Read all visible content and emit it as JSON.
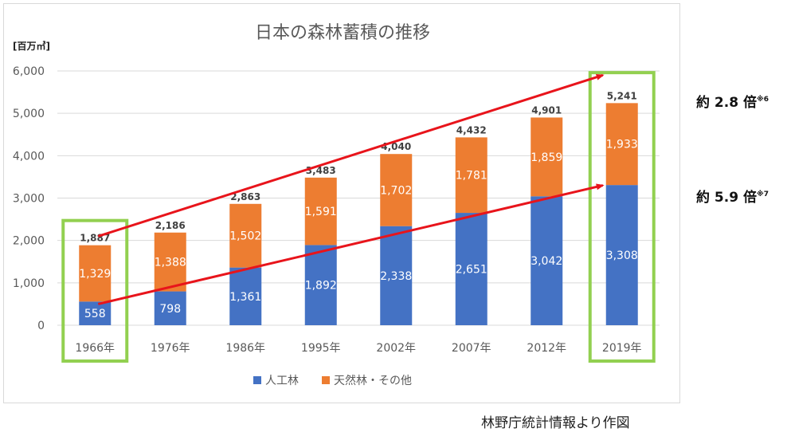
{
  "chart_data": {
    "type": "bar",
    "stacked": true,
    "title": "日本の森林蓄積の推移",
    "ylabel": "[百万㎥]",
    "xlabel": "",
    "ylim": [
      0,
      6000
    ],
    "yticks": [
      "0",
      "1,000",
      "2,000",
      "3,000",
      "4,000",
      "5,000",
      "6,000"
    ],
    "categories": [
      "1966年",
      "1976年",
      "1986年",
      "1995年",
      "2002年",
      "2007年",
      "2012年",
      "2019年"
    ],
    "series": [
      {
        "name": "人工林",
        "color": "#4472c4",
        "values": [
          558,
          798,
          1361,
          1892,
          2338,
          2651,
          3042,
          3308
        ],
        "labels": [
          "558",
          "798",
          "1,361",
          "1,892",
          "2,338",
          "2,651",
          "3,042",
          "3,308"
        ]
      },
      {
        "name": "天然林・その他",
        "color": "#ed7d31",
        "values": [
          1329,
          1388,
          1502,
          1591,
          1702,
          1781,
          1859,
          1933
        ],
        "labels": [
          "1,329",
          "1,388",
          "1,502",
          "1,591",
          "1,702",
          "1,781",
          "1,859",
          "1,933"
        ]
      }
    ],
    "totals": [
      1887,
      2186,
      2863,
      3483,
      4040,
      4432,
      4901,
      5241
    ],
    "total_labels": [
      "1,887",
      "2,186",
      "2,863",
      "3,483",
      "4,040",
      "4,432",
      "4,901",
      "5,241"
    ],
    "legend": "bottom",
    "grid": true,
    "highlight_categories": [
      "1966年",
      "2019年"
    ],
    "arrows": [
      {
        "from_category": "1966年",
        "to_category": "2019年",
        "from_value": 2100,
        "to_value": 5900
      },
      {
        "from_category": "1966年",
        "to_category": "2019年",
        "from_value": 500,
        "to_value": 3300
      }
    ]
  },
  "annotations": [
    {
      "text": "約 2.8 倍",
      "note": "※6"
    },
    {
      "text": "約 5.9 倍",
      "note": "※7"
    }
  ],
  "colors": {
    "highlight": "#92d050",
    "arrow": "#e8141b",
    "grid": "#d9d9d9",
    "tick_text": "#595959"
  },
  "source": "林野庁統計情報より作図"
}
